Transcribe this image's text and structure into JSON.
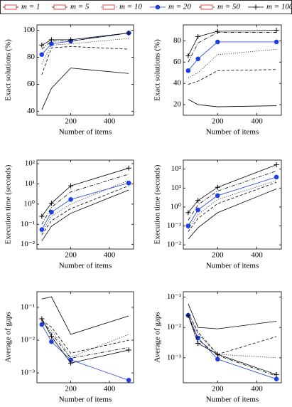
{
  "chart_data": [
    {
      "type": "line",
      "legend": "top",
      "xlabel": "Number of items",
      "ylabel": "Exact solutions (%)",
      "x": [
        50,
        100,
        200,
        500
      ],
      "xlim": [
        25,
        525
      ],
      "xticks": [
        200,
        400
      ],
      "log_y": false,
      "ylim": [
        37,
        104
      ],
      "yticks": [
        40,
        60,
        80,
        100
      ],
      "series": [
        {
          "name": "m = 1",
          "color": "#000000",
          "line_style": "solid",
          "marker": "none",
          "values": [
            41,
            57,
            72,
            68
          ]
        },
        {
          "name": "m = 5",
          "color": "#000000",
          "line_style": "dashed",
          "marker": "none",
          "values": [
            67,
            87,
            88,
            86
          ]
        },
        {
          "name": "m = 10",
          "color": "#000000",
          "line_style": "dotted",
          "marker": "none",
          "values": [
            75,
            89,
            90,
            94
          ]
        },
        {
          "name": "m = 20",
          "color": "#1f3fe0",
          "line_style": "solid",
          "marker": "circle",
          "values": [
            82,
            90,
            92,
            98
          ]
        },
        {
          "name": "m = 50",
          "color": "#000000",
          "line_style": "dashdot",
          "marker": "none",
          "values": [
            86,
            92,
            92,
            98
          ]
        },
        {
          "name": "m = 100",
          "color": "#000000",
          "line_style": "solid",
          "marker": "plus",
          "values": [
            89,
            93,
            93,
            98
          ]
        }
      ]
    },
    {
      "type": "line",
      "xlabel": "Number of items",
      "ylabel": "Exact solutions (%)",
      "x": [
        50,
        100,
        200,
        500
      ],
      "xlim": [
        25,
        525
      ],
      "xticks": [
        200,
        400
      ],
      "log_y": false,
      "ylim": [
        10,
        95
      ],
      "yticks": [
        20,
        40,
        60,
        80
      ],
      "series": [
        {
          "name": "m = 1",
          "color": "#000000",
          "line_style": "solid",
          "marker": "none",
          "values": [
            25,
            20,
            18,
            19
          ]
        },
        {
          "name": "m = 5",
          "color": "#000000",
          "line_style": "dashed",
          "marker": "none",
          "values": [
            39,
            42,
            52,
            53
          ]
        },
        {
          "name": "m = 10",
          "color": "#000000",
          "line_style": "dotted",
          "marker": "none",
          "values": [
            45,
            50,
            67,
            72
          ]
        },
        {
          "name": "m = 20",
          "color": "#1f3fe0",
          "line_style": "solid",
          "marker": "circle",
          "values": [
            52,
            63,
            79,
            79
          ]
        },
        {
          "name": "m = 50",
          "color": "#000000",
          "line_style": "dashdot",
          "marker": "none",
          "values": [
            60,
            78,
            88,
            88
          ]
        },
        {
          "name": "m = 100",
          "color": "#000000",
          "line_style": "solid",
          "marker": "plus",
          "values": [
            66,
            84,
            89,
            90
          ]
        }
      ]
    },
    {
      "type": "line",
      "xlabel": "Number of items",
      "ylabel": "Execution time (seconds)",
      "x": [
        50,
        100,
        200,
        500
      ],
      "xlim": [
        25,
        525
      ],
      "xticks": [
        200,
        400
      ],
      "log_y": true,
      "ylim": [
        0.006,
        150
      ],
      "yticks": [
        {
          "value": 0.01,
          "label": "10⁻²"
        },
        {
          "value": 0.1,
          "label": "10⁻¹"
        },
        {
          "value": 1,
          "label": "10⁰"
        },
        {
          "value": 10,
          "label": "10¹"
        },
        {
          "value": 100,
          "label": "10²"
        }
      ],
      "series": [
        {
          "name": "m = 1",
          "color": "#000000",
          "line_style": "solid",
          "marker": "none",
          "values": [
            0.015,
            0.08,
            0.35,
            5
          ]
        },
        {
          "name": "m = 5",
          "color": "#000000",
          "line_style": "dashed",
          "marker": "none",
          "values": [
            0.03,
            0.15,
            0.6,
            8
          ]
        },
        {
          "name": "m = 10",
          "color": "#000000",
          "line_style": "dotted",
          "marker": "none",
          "values": [
            0.04,
            0.25,
            1.0,
            15
          ]
        },
        {
          "name": "m = 20",
          "color": "#1f3fe0",
          "line_style": "solid",
          "marker": "circle",
          "values": [
            0.055,
            0.4,
            1.7,
            11
          ]
        },
        {
          "name": "m = 50",
          "color": "#000000",
          "line_style": "dashdot",
          "marker": "none",
          "values": [
            0.1,
            0.7,
            4,
            30
          ]
        },
        {
          "name": "m = 100",
          "color": "#000000",
          "line_style": "solid",
          "marker": "plus",
          "values": [
            0.25,
            1.1,
            8,
            60
          ]
        }
      ]
    },
    {
      "type": "line",
      "xlabel": "Number of items",
      "ylabel": "Execution time (seconds)",
      "x": [
        50,
        100,
        200,
        500
      ],
      "xlim": [
        25,
        525
      ],
      "xticks": [
        200,
        400
      ],
      "log_y": true,
      "ylim": [
        0.006,
        300
      ],
      "yticks": [
        {
          "value": 0.01,
          "label": "10⁻²"
        },
        {
          "value": 0.1,
          "label": "10⁻¹"
        },
        {
          "value": 1,
          "label": "10⁰"
        },
        {
          "value": 10,
          "label": "10¹"
        },
        {
          "value": 100,
          "label": "10²"
        }
      ],
      "series": [
        {
          "name": "m = 1",
          "color": "#000000",
          "line_style": "solid",
          "marker": "none",
          "values": [
            0.02,
            0.08,
            0.5,
            9
          ]
        },
        {
          "name": "m = 5",
          "color": "#000000",
          "line_style": "dashed",
          "marker": "none",
          "values": [
            0.05,
            0.25,
            1.5,
            20
          ]
        },
        {
          "name": "m = 10",
          "color": "#000000",
          "line_style": "dotted",
          "marker": "none",
          "values": [
            0.07,
            0.4,
            2.5,
            25
          ]
        },
        {
          "name": "m = 20",
          "color": "#1f3fe0",
          "line_style": "solid",
          "marker": "circle",
          "values": [
            0.1,
            0.7,
            4,
            38
          ]
        },
        {
          "name": "m = 50",
          "color": "#000000",
          "line_style": "dashdot",
          "marker": "none",
          "values": [
            0.2,
            1.3,
            7,
            80
          ]
        },
        {
          "name": "m = 100",
          "color": "#000000",
          "line_style": "solid",
          "marker": "plus",
          "values": [
            0.5,
            2.2,
            11,
            170
          ]
        }
      ]
    },
    {
      "type": "line",
      "xlabel": "Number of items",
      "ylabel": "Average of gaps",
      "x": [
        50,
        100,
        200,
        500
      ],
      "xlim": [
        25,
        525
      ],
      "xticks": [
        200,
        400
      ],
      "log_y": true,
      "ylim": [
        0.0005,
        0.3
      ],
      "yticks": [
        {
          "value": 0.001,
          "label": "10⁻³"
        },
        {
          "value": 0.01,
          "label": "10⁻²"
        },
        {
          "value": 0.1,
          "label": "10⁻¹"
        }
      ],
      "series": [
        {
          "name": "m = 1",
          "color": "#000000",
          "line_style": "solid",
          "marker": "none",
          "values": [
            0.18,
            0.21,
            0.015,
            0.055
          ]
        },
        {
          "name": "m = 5",
          "color": "#000000",
          "line_style": "dashed",
          "marker": "none",
          "values": [
            0.04,
            0.025,
            0.004,
            0.01
          ]
        },
        {
          "name": "m = 10",
          "color": "#000000",
          "line_style": "dotted",
          "marker": "none",
          "values": [
            0.035,
            0.02,
            0.003,
            0.015
          ]
        },
        {
          "name": "m = 20",
          "color": "#1f3fe0",
          "line_style": "solid",
          "marker": "circle",
          "values": [
            0.03,
            0.009,
            0.0025,
            0.0006
          ]
        },
        {
          "name": "m = 50",
          "color": "#000000",
          "line_style": "dashdot",
          "marker": "none",
          "values": [
            0.04,
            0.016,
            0.0028,
            0.006
          ]
        },
        {
          "name": "m = 100",
          "color": "#000000",
          "line_style": "solid",
          "marker": "plus",
          "values": [
            0.045,
            0.013,
            0.002,
            0.005
          ]
        }
      ]
    },
    {
      "type": "line",
      "xlabel": "Number of items",
      "ylabel": "Average of gaps",
      "x": [
        50,
        100,
        200,
        500
      ],
      "xlim": [
        25,
        525
      ],
      "xticks": [
        200,
        400
      ],
      "log_y": true,
      "ylim": [
        0.00015,
        0.15
      ],
      "yticks": [
        {
          "value": 0.001,
          "label": "10⁻³"
        },
        {
          "value": 0.01,
          "label": "10⁻²"
        },
        {
          "value": 0.1,
          "label": "10⁻¹"
        }
      ],
      "series": [
        {
          "name": "m = 1",
          "color": "#000000",
          "line_style": "solid",
          "marker": "none",
          "values": [
            0.06,
            0.01,
            0.009,
            0.016
          ]
        },
        {
          "name": "m = 5",
          "color": "#000000",
          "line_style": "dashed",
          "marker": "none",
          "values": [
            0.03,
            0.007,
            0.0013,
            0.005
          ]
        },
        {
          "name": "m = 10",
          "color": "#000000",
          "line_style": "dotted",
          "marker": "none",
          "values": [
            0.03,
            0.006,
            0.0013,
            0.001
          ]
        },
        {
          "name": "m = 20",
          "color": "#1f3fe0",
          "line_style": "solid",
          "marker": "circle",
          "values": [
            0.025,
            0.0045,
            0.0009,
            0.0002
          ]
        },
        {
          "name": "m = 50",
          "color": "#000000",
          "line_style": "dashdot",
          "marker": "none",
          "values": [
            0.025,
            0.004,
            0.0012,
            0.00025
          ]
        },
        {
          "name": "m = 100",
          "color": "#000000",
          "line_style": "solid",
          "marker": "plus",
          "values": [
            0.025,
            0.003,
            0.0013,
            0.00028
          ]
        }
      ]
    }
  ]
}
